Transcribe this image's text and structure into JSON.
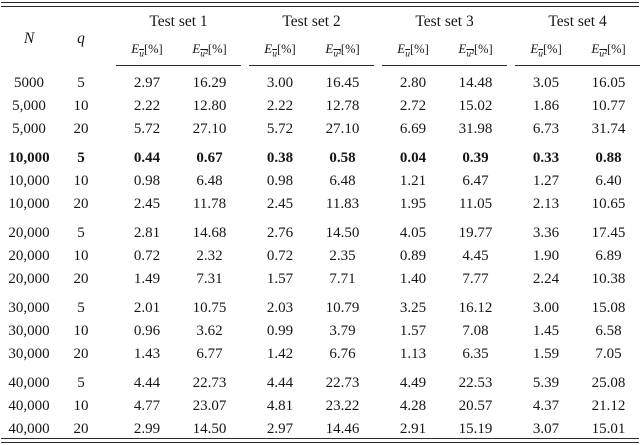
{
  "colors": {
    "background": "#ffffff",
    "text": "#161616",
    "rule": "#2a2a2a"
  },
  "table": {
    "col_n": "N",
    "col_q": "q",
    "test_sets": [
      "Test set 1",
      "Test set 2",
      "Test set 3",
      "Test set 4"
    ],
    "sub_cols": [
      {
        "sym": "E",
        "sub": "u",
        "unit": "[%]"
      },
      {
        "sym": "E",
        "sub": "u²",
        "unit": "[%]"
      }
    ],
    "rows": [
      {
        "n": "5000",
        "q": "5",
        "vals": [
          "2.97",
          "16.29",
          "3.00",
          "16.45",
          "2.80",
          "14.48",
          "3.05",
          "16.05"
        ],
        "highlight": false,
        "block_start": false
      },
      {
        "n": "5,000",
        "q": "10",
        "vals": [
          "2.22",
          "12.80",
          "2.22",
          "12.78",
          "2.72",
          "15.02",
          "1.86",
          "10.77"
        ],
        "highlight": false,
        "block_start": false
      },
      {
        "n": "5,000",
        "q": "20",
        "vals": [
          "5.72",
          "27.10",
          "5.72",
          "27.10",
          "6.69",
          "31.98",
          "6.73",
          "31.74"
        ],
        "highlight": false,
        "block_start": false
      },
      {
        "n": "10,000",
        "q": "5",
        "vals": [
          "0.44",
          "0.67",
          "0.38",
          "0.58",
          "0.04",
          "0.39",
          "0.33",
          "0.88"
        ],
        "highlight": true,
        "block_start": true
      },
      {
        "n": "10,000",
        "q": "10",
        "vals": [
          "0.98",
          "6.48",
          "0.98",
          "6.48",
          "1.21",
          "6.47",
          "1.27",
          "6.40"
        ],
        "highlight": false,
        "block_start": false
      },
      {
        "n": "10,000",
        "q": "20",
        "vals": [
          "2.45",
          "11.78",
          "2.45",
          "11.83",
          "1.95",
          "11.05",
          "2.13",
          "10.65"
        ],
        "highlight": false,
        "block_start": false
      },
      {
        "n": "20,000",
        "q": "5",
        "vals": [
          "2.81",
          "14.68",
          "2.76",
          "14.50",
          "4.05",
          "19.77",
          "3.36",
          "17.45"
        ],
        "highlight": false,
        "block_start": true
      },
      {
        "n": "20,000",
        "q": "10",
        "vals": [
          "0.72",
          "2.32",
          "0.72",
          "2.35",
          "0.89",
          "4.45",
          "1.90",
          "6.89"
        ],
        "highlight": false,
        "block_start": false
      },
      {
        "n": "20,000",
        "q": "20",
        "vals": [
          "1.49",
          "7.31",
          "1.57",
          "7.71",
          "1.40",
          "7.77",
          "2.24",
          "10.38"
        ],
        "highlight": false,
        "block_start": false
      },
      {
        "n": "30,000",
        "q": "5",
        "vals": [
          "2.01",
          "10.75",
          "2.03",
          "10.79",
          "3.25",
          "16.12",
          "3.00",
          "15.08"
        ],
        "highlight": false,
        "block_start": true
      },
      {
        "n": "30,000",
        "q": "10",
        "vals": [
          "0.96",
          "3.62",
          "0.99",
          "3.79",
          "1.57",
          "7.08",
          "1.45",
          "6.58"
        ],
        "highlight": false,
        "block_start": false
      },
      {
        "n": "30,000",
        "q": "20",
        "vals": [
          "1.43",
          "6.77",
          "1.42",
          "6.76",
          "1.13",
          "6.35",
          "1.59",
          "7.05"
        ],
        "highlight": false,
        "block_start": false
      },
      {
        "n": "40,000",
        "q": "5",
        "vals": [
          "4.44",
          "22.73",
          "4.44",
          "22.73",
          "4.49",
          "22.53",
          "5.39",
          "25.08"
        ],
        "highlight": false,
        "block_start": true
      },
      {
        "n": "40,000",
        "q": "10",
        "vals": [
          "4.77",
          "23.07",
          "4.81",
          "23.22",
          "4.28",
          "20.57",
          "4.37",
          "21.12"
        ],
        "highlight": false,
        "block_start": false
      },
      {
        "n": "40,000",
        "q": "20",
        "vals": [
          "2.99",
          "14.50",
          "2.97",
          "14.46",
          "2.91",
          "15.19",
          "3.07",
          "15.01"
        ],
        "highlight": false,
        "block_start": false
      }
    ]
  }
}
